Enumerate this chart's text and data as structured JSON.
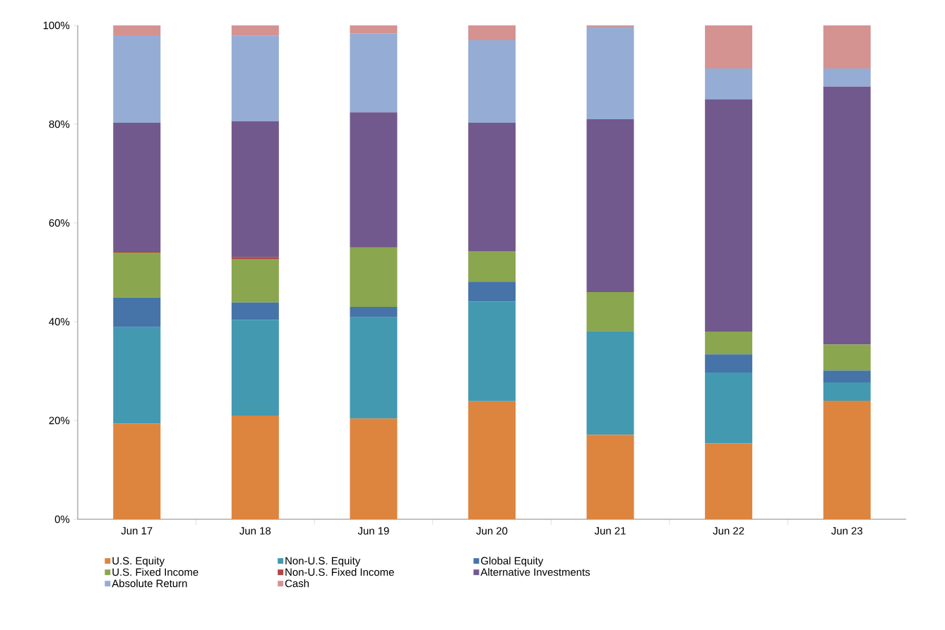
{
  "chart_data": {
    "type": "bar",
    "stacked": true,
    "categories": [
      "Jun 17",
      "Jun 18",
      "Jun 19",
      "Jun 20",
      "Jun 21",
      "Jun 22",
      "Jun 23"
    ],
    "series": [
      {
        "name": "U.S. Equity",
        "color": "#dd843f",
        "values": [
          19.4,
          21.0,
          20.4,
          23.9,
          17.1,
          15.4,
          24.0
        ]
      },
      {
        "name": "Non-U.S. Equity",
        "color": "#4299b0",
        "values": [
          19.5,
          19.4,
          20.5,
          20.2,
          21.0,
          14.3,
          3.7
        ]
      },
      {
        "name": "Global Equity",
        "color": "#4673a8",
        "values": [
          6.0,
          3.5,
          2.1,
          4.0,
          0,
          3.7,
          2.4
        ]
      },
      {
        "name": "U.S. Fixed Income",
        "color": "#8aa64e",
        "values": [
          9.1,
          8.8,
          12.0,
          6.2,
          7.9,
          4.6,
          5.3
        ]
      },
      {
        "name": "Non-U.S. Fixed Income",
        "color": "#b04545",
        "values": [
          0.3,
          0.4,
          0.1,
          0,
          0,
          0,
          0
        ]
      },
      {
        "name": "Alternative Investments",
        "color": "#72598d",
        "values": [
          26.0,
          27.5,
          27.3,
          26.0,
          35.0,
          47.0,
          52.2
        ]
      },
      {
        "name": "Absolute Return",
        "color": "#95acd4",
        "values": [
          17.7,
          17.3,
          16.0,
          16.7,
          18.7,
          6.3,
          3.7
        ]
      },
      {
        "name": "Cash",
        "color": "#d49291",
        "values": [
          2.0,
          2.1,
          1.6,
          3.0,
          0.3,
          8.7,
          8.7
        ]
      }
    ],
    "ylim": [
      0,
      100
    ],
    "yticks": [
      {
        "value": 0,
        "label": "0%"
      },
      {
        "value": 20,
        "label": "20%"
      },
      {
        "value": 40,
        "label": "40%"
      },
      {
        "value": 60,
        "label": "60%"
      },
      {
        "value": 80,
        "label": "80%"
      },
      {
        "value": 100,
        "label": "100%"
      }
    ],
    "legend": "bottom"
  }
}
